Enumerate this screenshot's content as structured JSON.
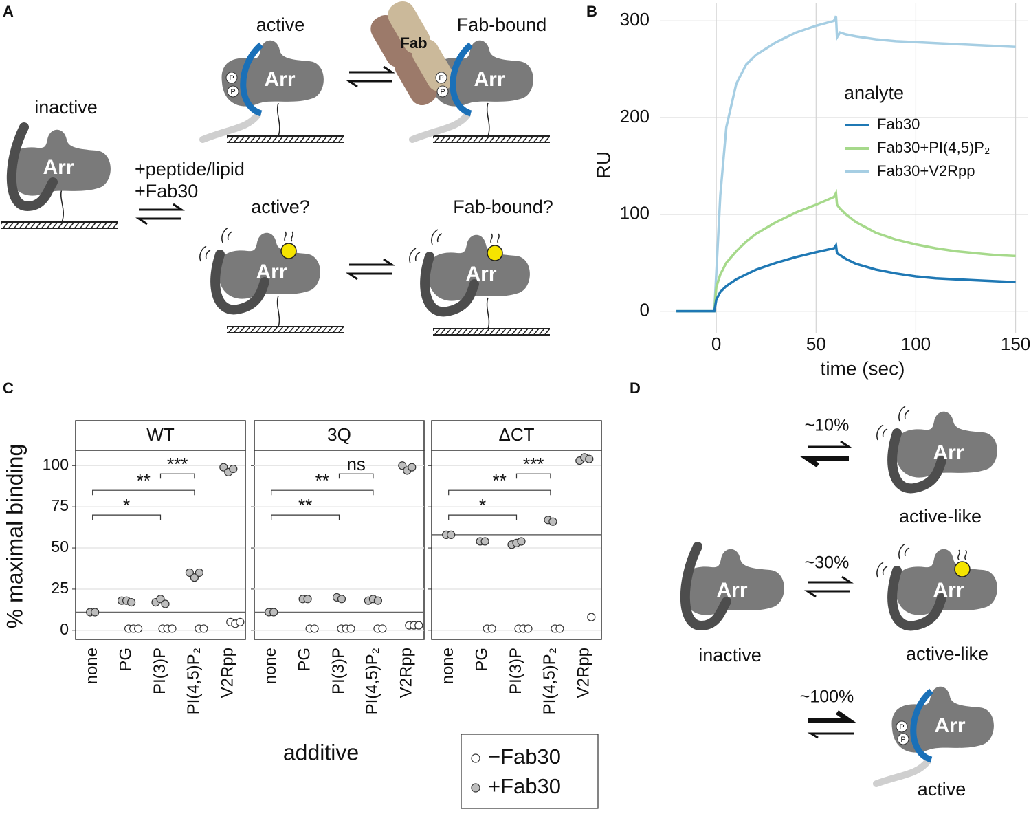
{
  "panel_a": {
    "label": "A",
    "states": {
      "inactive": "inactive",
      "active": "active",
      "fab_bound": "Fab-bound",
      "active_q": "active?",
      "fab_bound_q": "Fab-bound?"
    },
    "conditions": [
      "+peptide/lipid",
      "+Fab30"
    ],
    "protein": "Arr",
    "fab": "Fab",
    "phospho": "P"
  },
  "chart_data": [
    {
      "type": "line",
      "panel": "B",
      "xlabel": "time (sec)",
      "ylabel": "RU",
      "legend_title": "analyte",
      "grid": true,
      "xlim": [
        -28.3,
        156
      ],
      "ylim": [
        -23,
        318
      ],
      "xticks": [
        0,
        50,
        100,
        150
      ],
      "yticks": [
        0,
        100,
        200,
        300
      ],
      "x": [
        -20,
        -10,
        -1,
        0,
        2,
        5,
        10,
        15,
        20,
        30,
        40,
        50,
        59,
        60,
        60.5,
        62,
        65,
        70,
        80,
        90,
        100,
        110,
        120,
        130,
        140,
        150
      ],
      "series": [
        {
          "name": "Fab30",
          "color": "#1f78b4",
          "values": [
            0,
            0,
            0,
            12,
            20,
            26,
            33,
            38,
            43,
            50,
            56,
            61,
            65,
            68,
            60,
            58,
            54,
            49,
            43,
            39,
            36,
            34,
            33,
            32,
            31,
            30
          ]
        },
        {
          "name": "Fab30+PI(4,5)P₂",
          "color": "#a6d98b",
          "values": [
            0,
            0,
            0,
            25,
            38,
            50,
            62,
            72,
            80,
            92,
            102,
            110,
            118,
            122,
            110,
            106,
            100,
            92,
            81,
            74,
            69,
            65,
            62,
            60,
            58,
            57
          ]
        },
        {
          "name": "Fab30+V2Rpp",
          "color": "#a6cee3",
          "values": [
            0,
            0,
            0,
            40,
            120,
            190,
            235,
            255,
            265,
            278,
            288,
            295,
            300,
            305,
            283,
            288,
            286,
            284,
            281,
            279,
            278,
            277,
            276,
            275,
            274,
            273
          ]
        }
      ]
    },
    {
      "type": "dot",
      "panel": "C",
      "xlabel": "additive",
      "ylabel": "% maximal binding",
      "grid": true,
      "ylim": [
        -5.5,
        109.3
      ],
      "yticks": [
        0,
        25,
        50,
        75,
        100
      ],
      "categories": [
        "none",
        "PG",
        "PI(3)P",
        "PI(4,5)P₂",
        "V2Rpp"
      ],
      "series": [
        {
          "name": "−Fab30",
          "color": "#ffffff"
        },
        {
          "name": "+Fab30",
          "color": "#bdbdbd"
        }
      ],
      "facets": [
        {
          "title": "WT",
          "baseline": 11,
          "series": [
            {
              "values": [
                [],
                [
                  1,
                  1,
                  1
                ],
                [
                  1,
                  1,
                  1
                ],
                [
                  1,
                  1
                ],
                [
                  5,
                  4,
                  5
                ]
              ]
            },
            {
              "values": [
                [
                  11,
                  11
                ],
                [
                  18,
                  18,
                  17
                ],
                [
                  17,
                  19,
                  16
                ],
                [
                  35,
                  32,
                  35
                ],
                [
                  99,
                  96,
                  98
                ]
              ]
            }
          ],
          "brackets": [
            {
              "from": "none",
              "to": "PI(3)P",
              "y": 70,
              "label": "*"
            },
            {
              "from": "none",
              "to": "PI(4,5)P₂",
              "y": 85,
              "label": "**"
            },
            {
              "from": "PI(3)P",
              "to": "PI(4,5)P₂",
              "y": 95,
              "label": "***"
            }
          ]
        },
        {
          "title": "3Q",
          "baseline": 11,
          "series": [
            {
              "values": [
                [],
                [
                  1,
                  1
                ],
                [
                  1,
                  1,
                  1
                ],
                [
                  1,
                  1
                ],
                [
                  3,
                  3,
                  3
                ]
              ]
            },
            {
              "values": [
                [
                  11,
                  11
                ],
                [
                  19,
                  19
                ],
                [
                  20,
                  19
                ],
                [
                  18,
                  19,
                  18
                ],
                [
                  100,
                  97,
                  99
                ]
              ]
            }
          ],
          "brackets": [
            {
              "from": "none",
              "to": "PI(3)P",
              "y": 70,
              "label": "**"
            },
            {
              "from": "none",
              "to": "PI(4,5)P₂",
              "y": 85,
              "label": "**"
            },
            {
              "from": "PI(3)P",
              "to": "PI(4,5)P₂",
              "y": 95,
              "label": "ns"
            }
          ]
        },
        {
          "title": "ΔCT",
          "baseline": 58,
          "series": [
            {
              "values": [
                [],
                [
                  1,
                  1
                ],
                [
                  1,
                  1,
                  1
                ],
                [
                  1,
                  1
                ],
                [
                  8
                ]
              ]
            },
            {
              "values": [
                [
                  58,
                  58
                ],
                [
                  54,
                  54
                ],
                [
                  52,
                  53,
                  54
                ],
                [
                  67,
                  66
                ],
                [
                  103,
                  105,
                  104
                ]
              ]
            }
          ],
          "brackets": [
            {
              "from": "none",
              "to": "PI(3)P",
              "y": 70,
              "label": "*"
            },
            {
              "from": "none",
              "to": "PI(4,5)P₂",
              "y": 85,
              "label": "**"
            },
            {
              "from": "PI(3)P",
              "to": "PI(4,5)P₂",
              "y": 95,
              "label": "***"
            }
          ]
        }
      ]
    }
  ],
  "panel_d": {
    "label": "D",
    "protein": "Arr",
    "phospho": "P",
    "reference": "inactive",
    "rows": [
      {
        "fraction": "~10%",
        "state": "active-like"
      },
      {
        "fraction": "~30%",
        "state": "active-like"
      },
      {
        "fraction": "~100%",
        "state": "active"
      }
    ]
  }
}
